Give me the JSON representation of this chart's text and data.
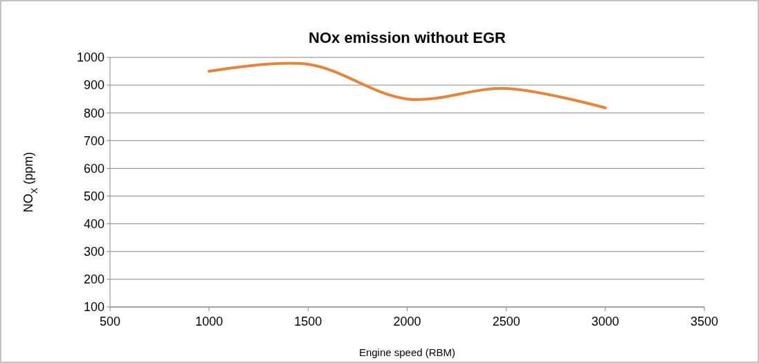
{
  "chart_data": {
    "type": "line",
    "title": "NOx emission without EGR",
    "xlabel": "Engine speed (RBM)",
    "ylabel": "NO$_{X}$ (ppm)",
    "x": [
      1000,
      1500,
      2000,
      2500,
      3000
    ],
    "series": [
      {
        "color": "#e4853b",
        "values": [
          950,
          975,
          850,
          888,
          818
        ]
      }
    ],
    "xlim": [
      500,
      3500
    ],
    "xticks": [
      500,
      1000,
      1500,
      2000,
      2500,
      3000,
      3500
    ],
    "ylim": [
      100,
      1000
    ],
    "yticks": [
      100,
      200,
      300,
      400,
      500,
      600,
      700,
      800,
      900,
      1000
    ],
    "grid": "y",
    "marker": "none",
    "line_style": "solid"
  }
}
